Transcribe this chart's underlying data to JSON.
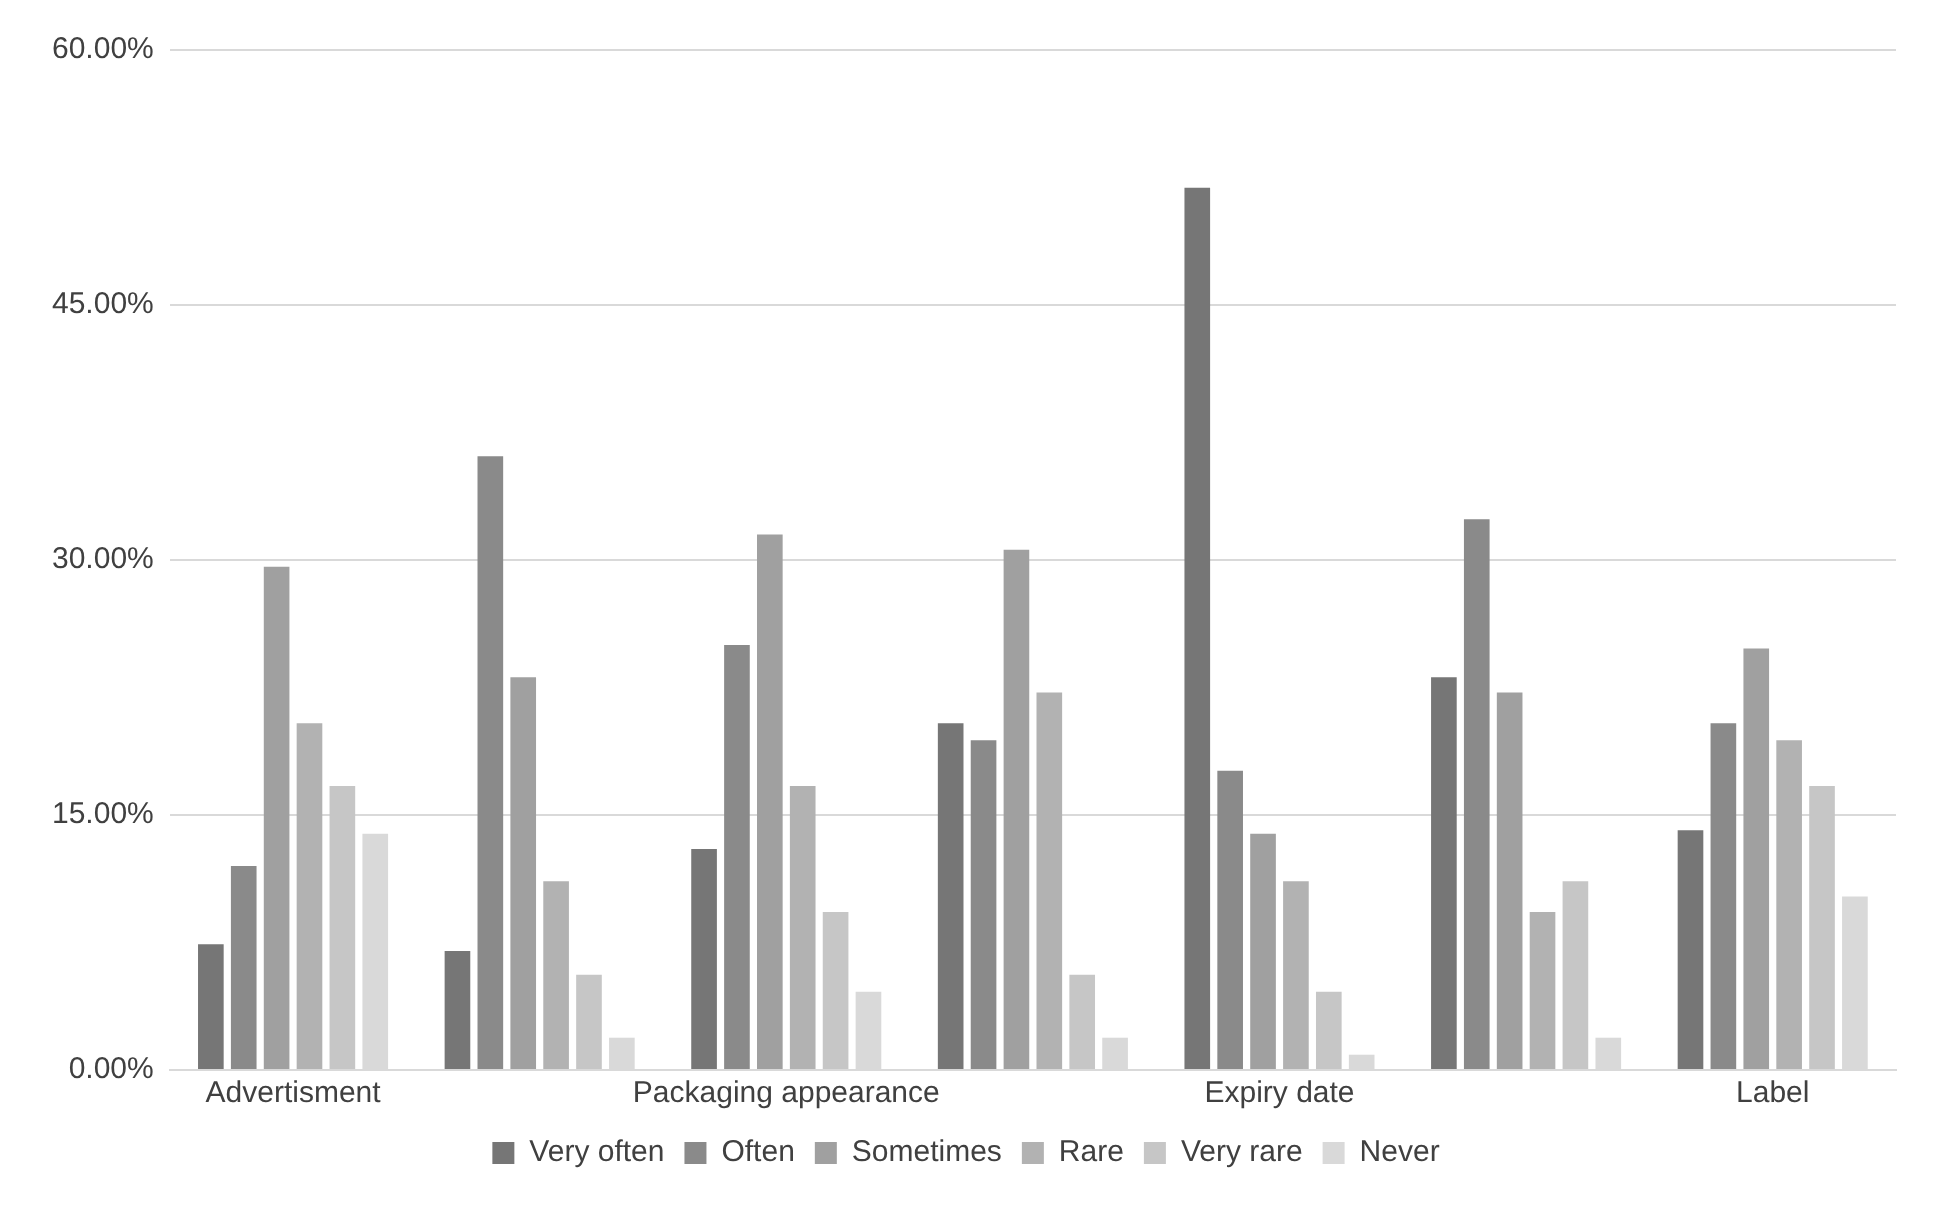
{
  "chart_data": {
    "type": "bar",
    "categories": [
      "Advertisment",
      null,
      "Packaging appearance",
      null,
      "Expiry date",
      null,
      "Label"
    ],
    "series": [
      {
        "name": "Very often",
        "color": "#767676",
        "values": [
          7.4,
          7.0,
          13.0,
          20.4,
          51.9,
          23.1,
          14.1
        ]
      },
      {
        "name": "Often",
        "color": "#8a8a8a",
        "values": [
          12.0,
          36.1,
          25.0,
          19.4,
          17.6,
          32.4,
          20.4
        ]
      },
      {
        "name": "Sometimes",
        "color": "#a0a0a0",
        "values": [
          29.6,
          23.1,
          31.5,
          30.6,
          13.9,
          22.2,
          24.8
        ]
      },
      {
        "name": "Rare",
        "color": "#b2b2b2",
        "values": [
          20.4,
          11.1,
          16.7,
          22.2,
          11.1,
          9.3,
          19.4
        ]
      },
      {
        "name": "Very rare",
        "color": "#c6c6c6",
        "values": [
          16.7,
          5.6,
          9.3,
          5.6,
          4.6,
          11.1,
          16.7
        ]
      },
      {
        "name": "Never",
        "color": "#d9d9d9",
        "values": [
          13.9,
          1.9,
          4.6,
          1.9,
          0.9,
          1.9,
          10.2
        ]
      }
    ],
    "ylim": [
      0,
      60
    ],
    "yticks": [
      {
        "value": 0,
        "label": "0.00%"
      },
      {
        "value": 15,
        "label": "15.00%"
      },
      {
        "value": 30,
        "label": "30.00%"
      },
      {
        "value": 45,
        "label": "45.00%"
      },
      {
        "value": 60,
        "label": "60.00%"
      }
    ],
    "grid": "y",
    "legend": "bottom"
  }
}
